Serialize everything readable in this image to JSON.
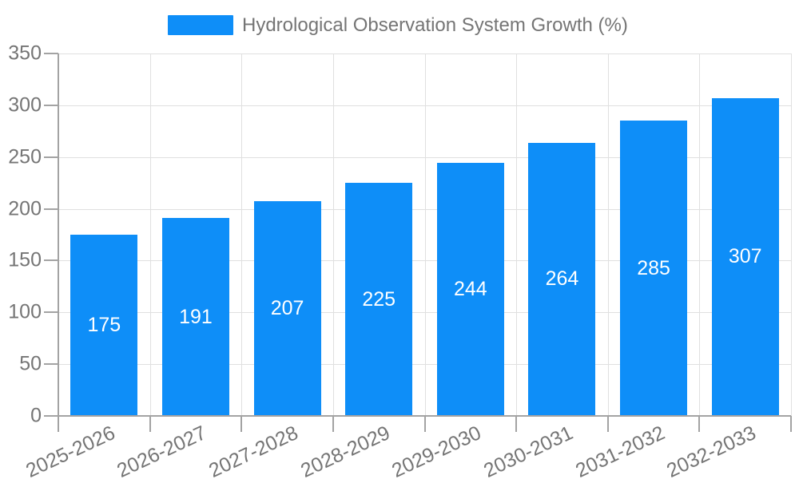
{
  "chart_data": {
    "type": "bar",
    "title": "Hydrological Observation System Growth (%)",
    "categories": [
      "2025-2026",
      "2026-2027",
      "2027-2028",
      "2028-2029",
      "2029-2030",
      "2030-2031",
      "2031-2032",
      "2032-2033"
    ],
    "values": [
      175,
      191,
      207,
      225,
      244,
      264,
      285,
      307
    ],
    "xlabel": "",
    "ylabel": "",
    "ylim": [
      0,
      350
    ],
    "yticks": [
      0,
      50,
      100,
      150,
      200,
      250,
      300,
      350
    ],
    "grid": true,
    "legend_position": "top",
    "value_labels": "centered-inside-bars"
  },
  "legend": {
    "label": "Hydrological Observation System Growth (%)"
  },
  "colors": {
    "background": "#ffffff",
    "bar": "#0e8ef8",
    "grid_line": "#e0e0e0",
    "axis_line": "#a3a3a3",
    "tick_text": "#757575",
    "legend_text": "#757575",
    "value_text": "#ffffff"
  }
}
